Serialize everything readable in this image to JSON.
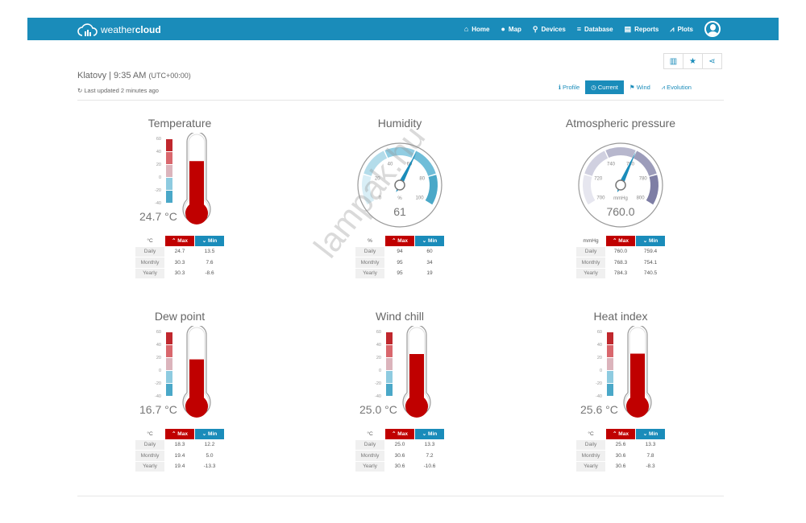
{
  "nav": {
    "brand_light": "weather",
    "brand_bold": "cloud",
    "items": [
      {
        "icon": "home-icon",
        "glyph": "⌂",
        "label": "Home"
      },
      {
        "icon": "globe-icon",
        "glyph": "●",
        "label": "Map"
      },
      {
        "icon": "devices-icon",
        "glyph": "⚲",
        "label": "Devices"
      },
      {
        "icon": "database-icon",
        "glyph": "≡",
        "label": "Database"
      },
      {
        "icon": "reports-icon",
        "glyph": "▤",
        "label": "Reports"
      },
      {
        "icon": "plots-icon",
        "glyph": "⩘",
        "label": "Plots"
      }
    ]
  },
  "header": {
    "location": "Klatovy | 9:35 AM",
    "tz": "(UTC+00:00)",
    "updated": "Last updated 2 minutes ago"
  },
  "tabs": [
    {
      "label": "Profile",
      "glyph": "ℹ",
      "active": false
    },
    {
      "label": "Current",
      "glyph": "◷",
      "active": true
    },
    {
      "label": "Wind",
      "glyph": "⚑",
      "active": false
    },
    {
      "label": "Evolution",
      "glyph": "⩘",
      "active": false
    }
  ],
  "colors": {
    "brand": "#1a8cba",
    "max": "#c00000",
    "min": "#1a8cba"
  },
  "table_headers": {
    "max": "Max",
    "min": "Min",
    "rows": [
      "Daily",
      "Monthly",
      "Yearly"
    ]
  },
  "widgets": [
    {
      "type": "thermo",
      "title": "Temperature",
      "value": 24.7,
      "display": "24.7 °C",
      "unit": "°C",
      "scale": [
        "60",
        "40",
        "20",
        "0",
        "-20",
        "-40"
      ],
      "max": [
        "24.7",
        "30.3",
        "30.3"
      ],
      "min": [
        "13.5",
        "7.6",
        "-8.6"
      ]
    },
    {
      "type": "gauge",
      "title": "Humidity",
      "value": 61,
      "display": "61",
      "unit": "%",
      "range": [
        0,
        100
      ],
      "ticks": [
        "0",
        "20",
        "40",
        "60",
        "80",
        "100"
      ],
      "max": [
        "94",
        "95",
        "95"
      ],
      "min": [
        "60",
        "34",
        "19"
      ]
    },
    {
      "type": "gauge",
      "title": "Atmospheric pressure",
      "value": 760.0,
      "display": "760.0",
      "unit": "mmHg",
      "range": [
        700,
        800
      ],
      "ticks": [
        "700",
        "720",
        "740",
        "760",
        "780",
        "800"
      ],
      "max": [
        "760.0",
        "768.3",
        "784.3"
      ],
      "min": [
        "759.4",
        "754.1",
        "740.5"
      ]
    },
    {
      "type": "thermo",
      "title": "Dew point",
      "value": 16.7,
      "display": "16.7 °C",
      "unit": "°C",
      "scale": [
        "60",
        "40",
        "20",
        "0",
        "-20",
        "-40"
      ],
      "max": [
        "18.3",
        "19.4",
        "19.4"
      ],
      "min": [
        "12.2",
        "5.0",
        "-13.3"
      ]
    },
    {
      "type": "thermo",
      "title": "Wind chill",
      "value": 25.0,
      "display": "25.0 °C",
      "unit": "°C",
      "scale": [
        "60",
        "40",
        "20",
        "0",
        "-20",
        "-40"
      ],
      "max": [
        "25.0",
        "30.6",
        "30.6"
      ],
      "min": [
        "13.3",
        "7.2",
        "-10.6"
      ]
    },
    {
      "type": "thermo",
      "title": "Heat index",
      "value": 25.6,
      "display": "25.6 °C",
      "unit": "°C",
      "scale": [
        "60",
        "40",
        "20",
        "0",
        "-20",
        "-40"
      ],
      "max": [
        "25.6",
        "30.6",
        "30.6"
      ],
      "min": [
        "13.3",
        "7.8",
        "-8.3"
      ]
    }
  ],
  "watermark": "lampak.hu"
}
